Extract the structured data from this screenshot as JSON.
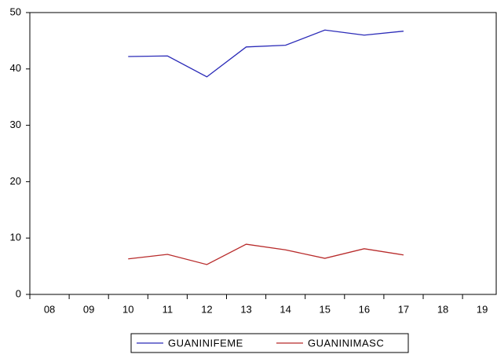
{
  "chart_data": {
    "type": "line",
    "categories": [
      "08",
      "09",
      "10",
      "11",
      "12",
      "13",
      "14",
      "15",
      "16",
      "17",
      "18",
      "19"
    ],
    "series": [
      {
        "name": "GUANINIFEME",
        "color": "#2b2bb8",
        "values": [
          null,
          null,
          42.2,
          42.3,
          38.6,
          43.9,
          44.2,
          46.9,
          46.0,
          46.7,
          null,
          null
        ]
      },
      {
        "name": "GUANINIMASC",
        "color": "#b82b2b",
        "values": [
          null,
          null,
          6.3,
          7.1,
          5.3,
          8.9,
          7.9,
          6.4,
          8.1,
          7.0,
          null,
          null
        ]
      }
    ],
    "ylim": [
      0,
      50
    ],
    "yticks": [
      0,
      10,
      20,
      30,
      40,
      50
    ],
    "grid": false,
    "legend": "bottom"
  }
}
